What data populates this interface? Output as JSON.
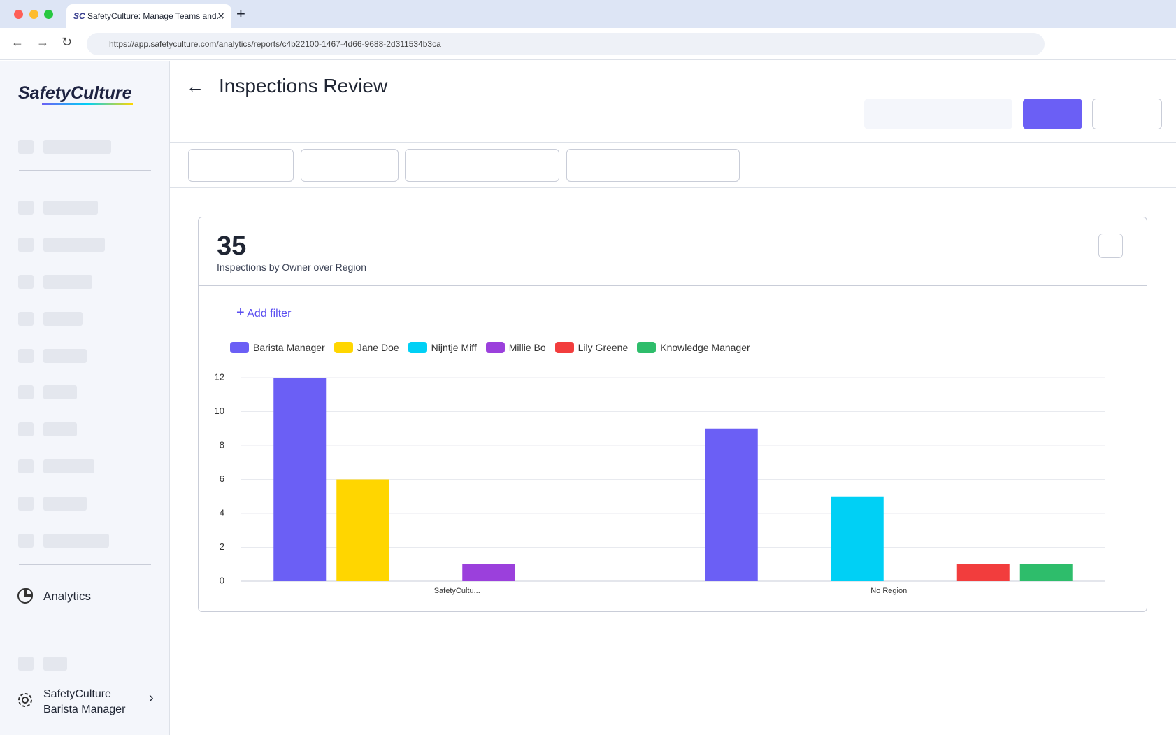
{
  "browser": {
    "tab_title": "SafetyCulture: Manage Teams and...",
    "tab_icon": "SC",
    "url": "https://app.safetyculture.com/analytics/reports/c4b22100-1467-4d66-9688-2d311534b3ca"
  },
  "sidebar": {
    "logo": "SafetyCulture",
    "active_item": "Analytics",
    "account": {
      "org": "SafetyCulture",
      "user": "Barista Manager"
    }
  },
  "header": {
    "title": "Inspections Review"
  },
  "card": {
    "total": "35",
    "subtitle": "Inspections by Owner over Region",
    "add_filter": "Add filter"
  },
  "chart_data": {
    "type": "bar",
    "categories": [
      "SafetyCultu...",
      "No Region"
    ],
    "series": [
      {
        "name": "Barista Manager",
        "color": "#6b5ff5",
        "values": [
          12,
          9
        ]
      },
      {
        "name": "Jane Doe",
        "color": "#ffd600",
        "values": [
          6,
          0
        ]
      },
      {
        "name": "Nijntje Miff",
        "color": "#00d0f5",
        "values": [
          0,
          5
        ]
      },
      {
        "name": "Millie Bo",
        "color": "#9b40dc",
        "values": [
          1,
          0
        ]
      },
      {
        "name": "Lily Greene",
        "color": "#f23d3d",
        "values": [
          0,
          1
        ]
      },
      {
        "name": "Knowledge Manager",
        "color": "#2ebd6b",
        "values": [
          0,
          1
        ]
      }
    ],
    "ylim": [
      0,
      12
    ],
    "yticks": [
      0,
      2,
      4,
      6,
      8,
      10,
      12
    ],
    "grid": true,
    "legend": "top-left"
  }
}
